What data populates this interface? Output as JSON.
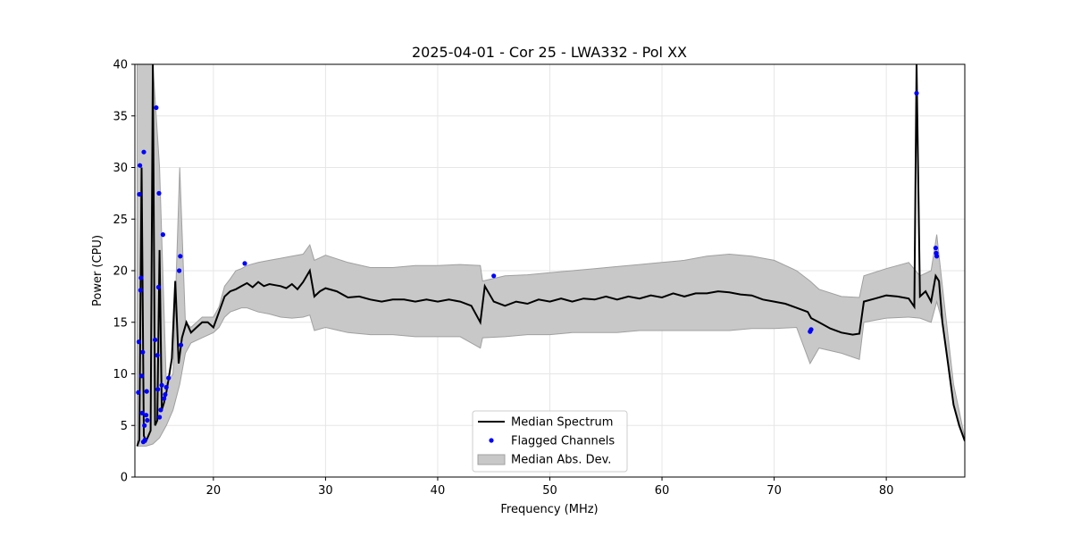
{
  "chart_data": {
    "type": "line",
    "title": "2025-04-01 - Cor 25 - LWA332 - Pol XX",
    "xlabel": "Frequency (MHz)",
    "ylabel": "Power (CPU)",
    "xlim": [
      13,
      87
    ],
    "ylim": [
      0,
      40
    ],
    "xticks": [
      20,
      30,
      40,
      50,
      60,
      70,
      80
    ],
    "yticks": [
      0,
      5,
      10,
      15,
      20,
      25,
      30,
      35,
      40
    ],
    "grid": true,
    "legend_position": "lower center",
    "colors": {
      "median": "#000000",
      "flagged": "#0000ff",
      "mad_fill": "#c8c8c8",
      "mad_edge": "#a0a0a0"
    },
    "legend": [
      {
        "label": "Median Spectrum",
        "kind": "line"
      },
      {
        "label": "Flagged Channels",
        "kind": "dot"
      },
      {
        "label": "Median Abs. Dev.",
        "kind": "patch"
      }
    ],
    "series": [
      {
        "name": "Median Spectrum",
        "x": [
          13.2,
          13.4,
          13.6,
          13.8,
          14.0,
          14.2,
          14.4,
          14.6,
          14.8,
          15.0,
          15.2,
          15.4,
          15.6,
          15.8,
          16.0,
          16.3,
          16.6,
          16.9,
          17.2,
          17.6,
          18.0,
          18.5,
          19.0,
          19.5,
          20.0,
          20.5,
          21.0,
          21.5,
          22.0,
          22.5,
          23.0,
          23.5,
          24.0,
          24.5,
          25.0,
          25.5,
          26.0,
          26.5,
          27.0,
          27.5,
          28.0,
          28.6,
          29.0,
          29.5,
          30.0,
          31.0,
          32.0,
          33.0,
          34.0,
          35.0,
          36.0,
          37.0,
          38.0,
          39.0,
          40.0,
          41.0,
          42.0,
          43.0,
          43.8,
          44.2,
          45.0,
          46.0,
          47.0,
          48.0,
          49.0,
          50.0,
          51.0,
          52.0,
          53.0,
          54.0,
          55.0,
          56.0,
          57.0,
          58.0,
          59.0,
          60.0,
          61.0,
          62.0,
          63.0,
          64.0,
          65.0,
          66.0,
          67.0,
          68.0,
          69.0,
          70.0,
          71.0,
          72.0,
          73.0,
          73.3,
          74.0,
          75.0,
          76.0,
          77.0,
          77.6,
          78.0,
          79.0,
          80.0,
          81.0,
          82.0,
          82.5,
          82.7,
          83.0,
          83.5,
          84.0,
          84.4,
          84.7,
          85.0,
          85.5,
          86.0,
          86.5,
          87.0
        ],
        "y": [
          3.0,
          3.6,
          30.0,
          4.0,
          3.5,
          4.0,
          4.5,
          40.0,
          5.0,
          5.5,
          22.0,
          6.5,
          7.2,
          8.2,
          9.5,
          11.5,
          19.0,
          11.0,
          13.5,
          15.0,
          14.0,
          14.5,
          15.0,
          15.0,
          14.5,
          16.0,
          17.5,
          18.0,
          18.2,
          18.5,
          18.8,
          18.4,
          18.9,
          18.5,
          18.7,
          18.6,
          18.5,
          18.3,
          18.7,
          18.2,
          18.9,
          20.0,
          17.5,
          18.0,
          18.3,
          18.0,
          17.4,
          17.5,
          17.2,
          17.0,
          17.2,
          17.2,
          17.0,
          17.2,
          17.0,
          17.2,
          17.0,
          16.6,
          15.0,
          18.5,
          17.0,
          16.6,
          17.0,
          16.8,
          17.2,
          17.0,
          17.3,
          17.0,
          17.3,
          17.2,
          17.5,
          17.2,
          17.5,
          17.3,
          17.6,
          17.4,
          17.8,
          17.5,
          17.8,
          17.8,
          18.0,
          17.9,
          17.7,
          17.6,
          17.2,
          17.0,
          16.8,
          16.4,
          16.0,
          15.4,
          15.0,
          14.4,
          14.0,
          13.8,
          13.9,
          17.0,
          17.3,
          17.6,
          17.5,
          17.3,
          16.5,
          40.0,
          17.5,
          18.0,
          17.0,
          19.5,
          19.0,
          15.0,
          11.0,
          7.0,
          5.0,
          3.5
        ]
      },
      {
        "name": "Flagged Channels",
        "x": [
          13.3,
          13.35,
          13.4,
          13.45,
          13.5,
          13.55,
          13.6,
          13.65,
          13.7,
          13.75,
          13.8,
          13.85,
          13.9,
          14.0,
          14.05,
          14.1,
          14.8,
          14.9,
          15.0,
          15.05,
          15.1,
          15.15,
          15.2,
          15.3,
          15.4,
          15.5,
          15.6,
          15.7,
          15.8,
          16.0,
          16.95,
          17.05,
          17.1,
          22.8,
          45.0,
          73.2,
          73.3,
          82.7,
          84.4,
          84.45,
          84.5
        ],
        "y": [
          8.2,
          13.1,
          27.4,
          30.2,
          18.1,
          19.3,
          9.8,
          6.2,
          12.1,
          3.4,
          31.5,
          5.0,
          3.6,
          6.0,
          8.3,
          5.5,
          13.3,
          35.8,
          11.8,
          8.5,
          18.4,
          27.5,
          5.8,
          6.5,
          8.9,
          23.5,
          7.6,
          8.0,
          8.7,
          9.6,
          20.0,
          21.4,
          12.8,
          20.7,
          19.5,
          14.1,
          14.3,
          37.2,
          22.2,
          21.7,
          21.4
        ]
      }
    ],
    "mad_band": {
      "name": "Median Abs. Dev.",
      "x": [
        13.2,
        14.0,
        14.6,
        15.2,
        15.8,
        16.4,
        17.0,
        17.5,
        18.0,
        19.0,
        20.0,
        20.5,
        21.0,
        21.5,
        22.0,
        22.5,
        23.0,
        24.0,
        25.0,
        26.0,
        27.0,
        28.0,
        28.6,
        29.0,
        30.0,
        32.0,
        34.0,
        36.0,
        38.0,
        40.0,
        42.0,
        43.8,
        44.0,
        46.0,
        48.0,
        50.0,
        52.0,
        54.0,
        56.0,
        58.0,
        60.0,
        62.0,
        64.0,
        66.0,
        68.0,
        70.0,
        72.0,
        73.2,
        74.0,
        76.0,
        77.6,
        78.0,
        80.0,
        82.0,
        83.0,
        84.0,
        84.5,
        85.0,
        86.0,
        87.0
      ],
      "upper": [
        40.0,
        40.0,
        40.0,
        30.0,
        9.0,
        10.0,
        30.0,
        15.0,
        14.5,
        15.5,
        15.5,
        16.5,
        18.5,
        19.2,
        20.0,
        20.2,
        20.5,
        20.8,
        21.0,
        21.2,
        21.4,
        21.6,
        22.5,
        21.0,
        21.5,
        20.8,
        20.3,
        20.3,
        20.5,
        20.5,
        20.6,
        20.5,
        19.0,
        19.5,
        19.6,
        19.8,
        20.0,
        20.2,
        20.4,
        20.6,
        20.8,
        21.0,
        21.4,
        21.6,
        21.4,
        21.0,
        20.0,
        19.0,
        18.2,
        17.5,
        17.4,
        19.5,
        20.2,
        20.8,
        19.5,
        20.0,
        23.5,
        18.5,
        9.0,
        3.8
      ],
      "lower": [
        3.0,
        3.0,
        3.2,
        3.8,
        5.0,
        6.5,
        9.0,
        12.0,
        13.0,
        13.5,
        14.0,
        14.5,
        15.5,
        16.0,
        16.2,
        16.4,
        16.4,
        16.0,
        15.8,
        15.5,
        15.4,
        15.5,
        15.7,
        14.2,
        14.5,
        14.0,
        13.8,
        13.8,
        13.6,
        13.6,
        13.6,
        12.5,
        13.5,
        13.6,
        13.8,
        13.8,
        14.0,
        14.0,
        14.0,
        14.2,
        14.2,
        14.2,
        14.2,
        14.2,
        14.4,
        14.4,
        14.5,
        11.0,
        12.5,
        12.0,
        11.4,
        15.0,
        15.4,
        15.5,
        15.4,
        15.0,
        17.0,
        15.0,
        7.0,
        3.4
      ]
    }
  }
}
